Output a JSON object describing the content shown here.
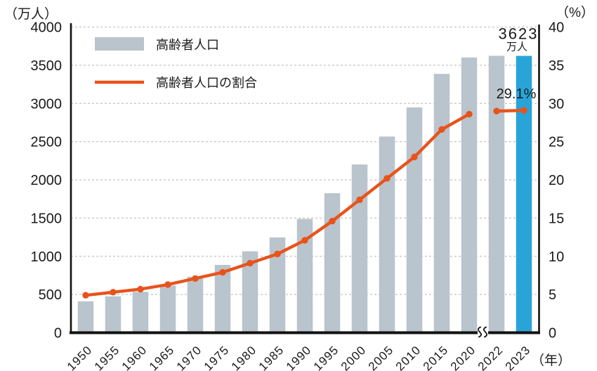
{
  "colors": {
    "bar": "#b9c4cd",
    "bar_highlight": "#29a4d8",
    "line": "#e8531b",
    "grid": "#c3c3c3",
    "axis": "#111111",
    "text": "#1a1a1a",
    "background": "#ffffff"
  },
  "legend": {
    "bar_label": "高齢者人口",
    "line_label": "高齢者人口の割合"
  },
  "annotations": {
    "peak_value": "3623",
    "peak_unit": "万人",
    "peak_rate": "29.1%"
  },
  "chart_data": {
    "type": "bar",
    "categories": [
      "1950",
      "1955",
      "1960",
      "1965",
      "1970",
      "1975",
      "1980",
      "1985",
      "1990",
      "1995",
      "2000",
      "2005",
      "2010",
      "2015",
      "2020",
      "2022",
      "2023"
    ],
    "series": [
      {
        "name": "高齢者人口",
        "type": "bar",
        "yaxis": "left",
        "unit": "万人",
        "values": [
          411,
          476,
          535,
          618,
          733,
          887,
          1065,
          1247,
          1489,
          1826,
          2201,
          2567,
          2948,
          3387,
          3602,
          3624,
          3623
        ]
      },
      {
        "name": "高齢者人口の割合",
        "type": "line",
        "yaxis": "right",
        "unit": "%",
        "values": [
          4.9,
          5.3,
          5.7,
          6.3,
          7.1,
          7.9,
          9.1,
          10.3,
          12.1,
          14.6,
          17.4,
          20.2,
          23.0,
          26.6,
          28.6,
          29.0,
          29.1
        ]
      }
    ],
    "left_axis": {
      "unit": "（万人）",
      "min": 0,
      "max": 4000,
      "step": 500
    },
    "right_axis": {
      "unit": "（%）",
      "min": 0,
      "max": 40,
      "step": 5
    },
    "x_axis": {
      "unit": "（年）",
      "break_between": [
        "2020",
        "2022"
      ]
    },
    "grid": "horizontal-dashed",
    "legend_position": "top-left-inside",
    "highlight_category": "2023",
    "line_gap_between": [
      "2020",
      "2022"
    ],
    "data_labels": [
      {
        "category": "2023",
        "series": "高齢者人口",
        "text": "3623",
        "sub": "万人"
      },
      {
        "category": "2023",
        "series": "高齢者人口の割合",
        "text": "29.1%"
      }
    ]
  }
}
